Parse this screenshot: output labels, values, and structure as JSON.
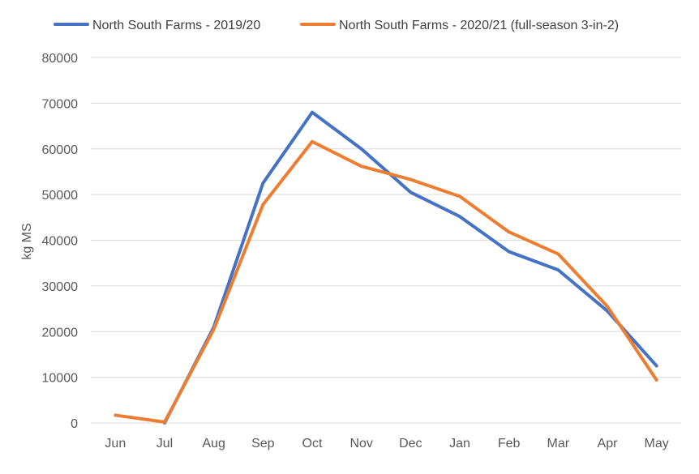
{
  "chart_data": {
    "type": "line",
    "title": "",
    "xlabel": "",
    "ylabel": "kg MS",
    "ylim": [
      0,
      80000
    ],
    "yticks": [
      0,
      10000,
      20000,
      30000,
      40000,
      50000,
      60000,
      70000,
      80000
    ],
    "grid": true,
    "legend_position": "top",
    "categories": [
      "Jun",
      "Jul",
      "Aug",
      "Sep",
      "Oct",
      "Nov",
      "Dec",
      "Jan",
      "Feb",
      "Mar",
      "Apr",
      "May"
    ],
    "series": [
      {
        "name": "North South Farms - 2019/20",
        "color": "#4472c4",
        "values": [
          null,
          0,
          21000,
          52500,
          68000,
          60000,
          50500,
          45200,
          37500,
          33500,
          24500,
          12500
        ]
      },
      {
        "name": "North South Farms - 2020/21 (full-season 3-in-2)",
        "color": "#ed7d31",
        "values": [
          1700,
          200,
          20500,
          47800,
          61600,
          56200,
          53300,
          49600,
          41800,
          37000,
          25500,
          9400
        ]
      }
    ]
  }
}
